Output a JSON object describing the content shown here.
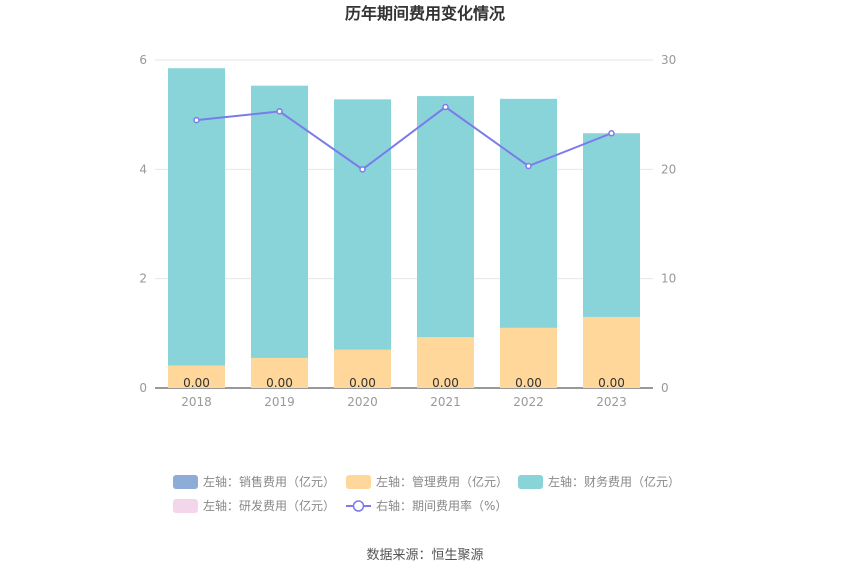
{
  "chart_data": {
    "type": "bar",
    "title": "历年期间费用变化情况",
    "categories": [
      "2018",
      "2019",
      "2020",
      "2021",
      "2022",
      "2023"
    ],
    "stacked": true,
    "left_axis": {
      "ylim": [
        0,
        6
      ],
      "ticks": [
        "0",
        "2",
        "4",
        "6"
      ]
    },
    "right_axis": {
      "ylim": [
        0,
        30
      ],
      "ticks": [
        "0",
        "10",
        "20",
        "30"
      ]
    },
    "series": [
      {
        "name": "左轴：销售费用（亿元）",
        "axis": "left",
        "type": "bar",
        "color": "#8eacd8",
        "values": [
          0,
          0,
          0,
          0,
          0,
          0
        ]
      },
      {
        "name": "左轴：管理费用（亿元）",
        "axis": "left",
        "type": "bar",
        "color": "#ffd79a",
        "values": [
          0.41,
          0.55,
          0.7,
          0.93,
          1.1,
          1.3
        ]
      },
      {
        "name": "左轴：财务费用（亿元）",
        "axis": "left",
        "type": "bar",
        "color": "#88d4d9",
        "values": [
          5.44,
          4.98,
          4.58,
          4.41,
          4.19,
          3.36
        ]
      },
      {
        "name": "左轴：研发费用（亿元）",
        "axis": "left",
        "type": "bar",
        "color": "#f3d6ea",
        "values": [
          0,
          0,
          0,
          0,
          0,
          0
        ]
      },
      {
        "name": "右轴：期间费用率（%）",
        "axis": "right",
        "type": "line",
        "color": "#7b7bea",
        "values": [
          24.5,
          25.3,
          20.0,
          25.7,
          20.3,
          23.3
        ]
      }
    ],
    "bar_labels": [
      "0.00",
      "0.00",
      "0.00",
      "0.00",
      "0.00",
      "0.00"
    ],
    "legend_position": "bottom",
    "grid": true,
    "source": "数据来源：恒生聚源"
  }
}
